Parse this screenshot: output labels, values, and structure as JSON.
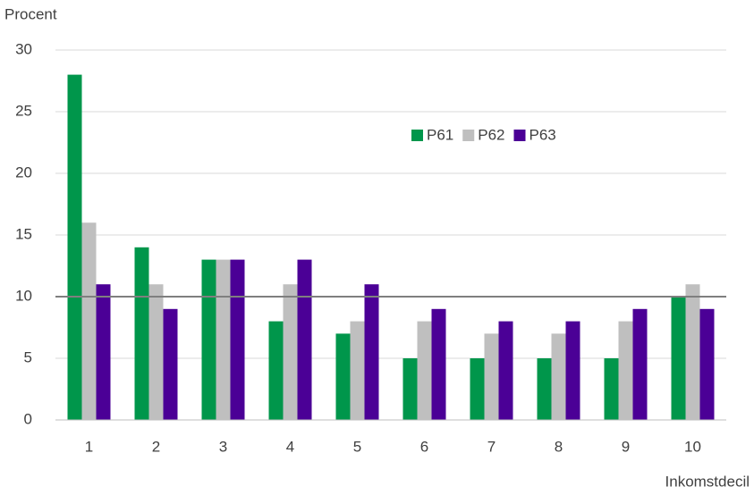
{
  "chart_data": {
    "type": "bar",
    "y_label": "Procent",
    "x_label": "Inkomstdecil",
    "categories": [
      "1",
      "2",
      "3",
      "4",
      "5",
      "6",
      "7",
      "8",
      "9",
      "10"
    ],
    "series": [
      {
        "name": "P61",
        "color": "#00964b",
        "values": [
          28,
          14,
          13,
          8,
          7,
          5,
          5,
          5,
          5,
          10
        ]
      },
      {
        "name": "P62",
        "color": "#bfbfbf",
        "values": [
          16,
          11,
          13,
          11,
          8,
          8,
          7,
          7,
          8,
          11
        ]
      },
      {
        "name": "P63",
        "color": "#4b0096",
        "values": [
          11,
          9,
          13,
          13,
          11,
          9,
          8,
          8,
          9,
          9
        ]
      }
    ],
    "reference_line": 10,
    "ylim": [
      0,
      30
    ],
    "yticks": [
      0,
      5,
      10,
      15,
      20,
      25,
      30
    ],
    "grid": true
  }
}
